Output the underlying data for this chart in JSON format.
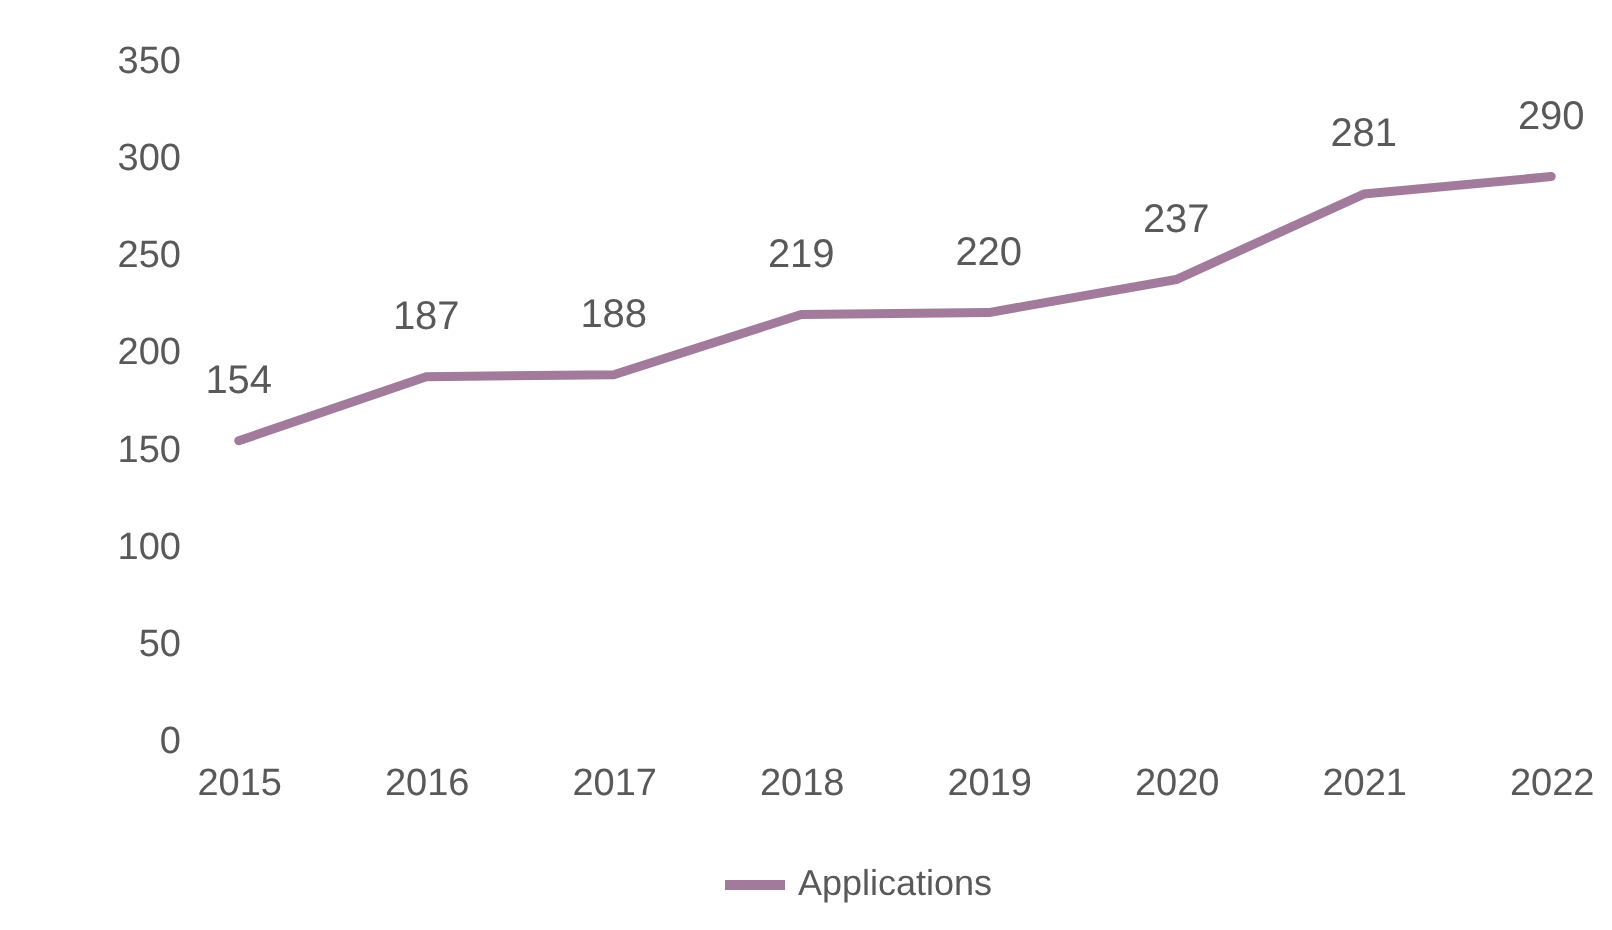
{
  "chart_data": {
    "type": "line",
    "categories": [
      "2015",
      "2016",
      "2017",
      "2018",
      "2019",
      "2020",
      "2021",
      "2022"
    ],
    "series": [
      {
        "name": "Applications",
        "color": "#a27a9c",
        "values": [
          154,
          187,
          188,
          219,
          220,
          237,
          281,
          290
        ]
      }
    ],
    "ylim": [
      0,
      350
    ],
    "yticks": [
      0,
      50,
      100,
      150,
      200,
      250,
      300,
      350
    ],
    "data_labels": true,
    "legend": "bottom",
    "grid": false,
    "marker": "none",
    "line_style": "solid"
  }
}
